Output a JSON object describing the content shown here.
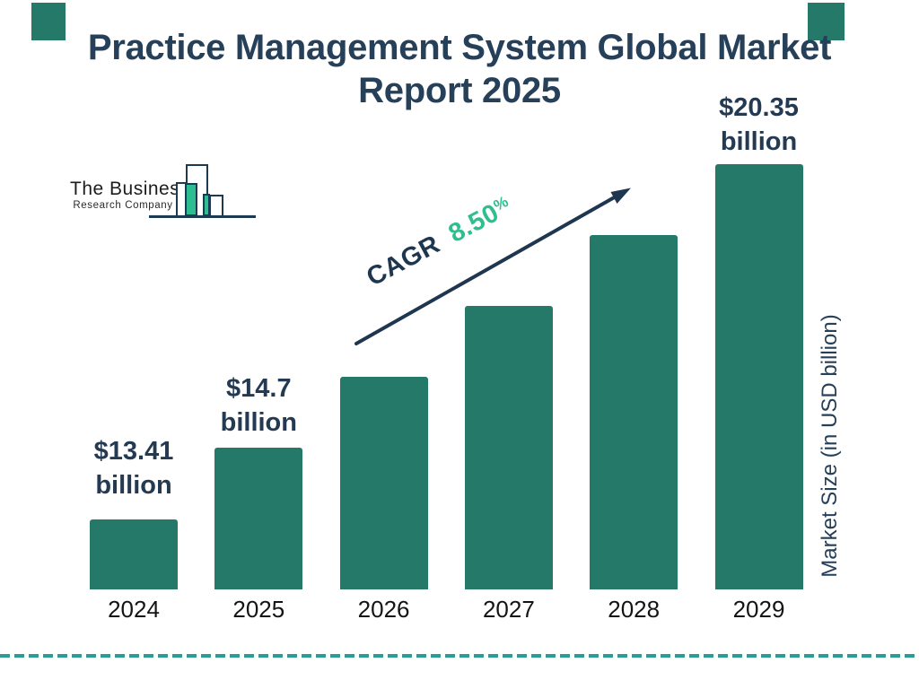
{
  "title": {
    "line1": "Practice Management System Global Market",
    "line2": "Report 2025",
    "color": "#26405A"
  },
  "logo": {
    "name": "The Business Research Company",
    "line1": "The Business",
    "line2": "Research Company",
    "mark_outline_color": "#1C3A52",
    "mark_fill_color": "#2EBD92"
  },
  "cagr": {
    "label": "CAGR",
    "value": "8.50",
    "percent_sign": "%",
    "label_color": "#1F3650",
    "value_color": "#2FBE8E"
  },
  "decor": {
    "corner_square_color": "#247969",
    "divider_color": "#2E9C94",
    "arrow_color": "#1F3650"
  },
  "chart_data": {
    "type": "bar",
    "title": "Practice Management System Global Market Report 2025",
    "categories": [
      "2024",
      "2025",
      "2026",
      "2027",
      "2028",
      "2029"
    ],
    "values": [
      13.41,
      14.7,
      15.95,
      17.31,
      18.78,
      20.35
    ],
    "values_unit": "USD billion",
    "value_labels": {
      "2024": [
        "$13.41",
        "billion"
      ],
      "2025": [
        "$14.7",
        "billion"
      ],
      "2029": [
        "$20.35",
        "billion"
      ]
    },
    "cagr_text": "CAGR 8.50%",
    "xlabel": "",
    "ylabel": "Market Size (in USD billion)",
    "bar_color": "#247969",
    "label_color": "#243A52",
    "grid": false,
    "legend": false
  }
}
